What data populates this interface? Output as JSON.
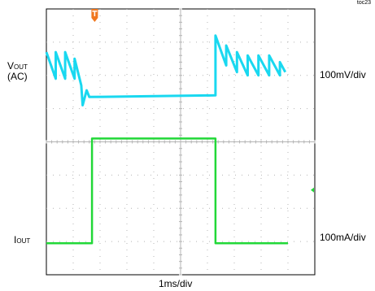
{
  "figure_id": "toc23",
  "colors": {
    "vout_trace": "#19d8f0",
    "iout_trace": "#22d838",
    "trigger_marker": "#f07820",
    "grid": "#b4b4b4",
    "frame": "#000000"
  },
  "chart_data": {
    "type": "line",
    "x_divisions": 10,
    "y_divisions": 8,
    "xlabel": "1ms/div",
    "x_unit": "ms",
    "x_range": [
      0,
      10
    ],
    "channels": [
      {
        "label_main": "V",
        "label_sub": "OUT",
        "label_extra": "(AC)",
        "scale_label": "100mV/div",
        "scale_value": 100,
        "scale_unit": "mV",
        "color": "#19d8f0",
        "x": [
          0,
          0.35,
          0.35,
          0.7,
          0.7,
          1.05,
          1.05,
          1.3,
          1.35,
          1.5,
          1.6,
          6.3,
          6.3,
          6.7,
          6.7,
          7.1,
          7.1,
          7.5,
          7.5,
          7.9,
          7.9,
          8.3,
          8.3,
          8.7,
          8.7,
          8.9
        ],
        "y_div": [
          1.0,
          0.2,
          1.0,
          0.2,
          1.0,
          0.2,
          0.8,
          0.0,
          -0.6,
          -0.15,
          -0.35,
          -0.3,
          1.5,
          0.6,
          1.2,
          0.4,
          1.0,
          0.3,
          0.9,
          0.3,
          0.9,
          0.3,
          0.9,
          0.3,
          0.7,
          0.4
        ]
      },
      {
        "label_main": "I",
        "label_sub": "OUT",
        "label_extra": "",
        "scale_label": "100mA/div",
        "scale_value": 100,
        "scale_unit": "mA",
        "color": "#22d838",
        "x": [
          0,
          1.7,
          1.7,
          6.3,
          6.3,
          9.0
        ],
        "y_div": [
          0,
          0,
          3.15,
          3.15,
          0,
          0
        ]
      }
    ]
  }
}
